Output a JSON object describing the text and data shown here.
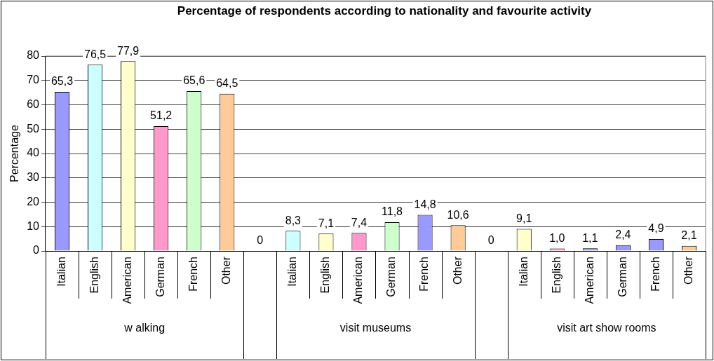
{
  "chart_data": {
    "type": "bar",
    "title": "Percentage of respondents according to nationality and favourite activity",
    "ylabel": "Percentage",
    "categories": [
      "Italian",
      "English",
      "American",
      "German",
      "French",
      "Other",
      null,
      "Italian",
      "English",
      "American",
      "German",
      "French",
      "Other",
      null,
      "Italian",
      "English",
      "American",
      "German",
      "French",
      "Other"
    ],
    "values": [
      65.3,
      76.5,
      77.9,
      51.2,
      65.6,
      64.5,
      0,
      8.3,
      7.1,
      7.4,
      11.8,
      14.8,
      10.6,
      0,
      9.1,
      1.0,
      1.1,
      2.4,
      4.9,
      2.1
    ],
    "value_labels": [
      "65,3",
      "76,5",
      "77,9",
      "51,2",
      "65,6",
      "64,5",
      "0",
      "8,3",
      "7,1",
      "7,4",
      "11,8",
      "14,8",
      "10,6",
      "0",
      "9,1",
      "1,0",
      "1,1",
      "2,4",
      "4,9",
      "2,1"
    ],
    "colors": [
      "#9999ff",
      "#ccffff",
      "#ffffcc",
      "#ff99cc",
      "#ccffcc",
      "#ffcc99",
      "#ffffff",
      "#ccffff",
      "#ffffcc",
      "#ff99cc",
      "#ccffcc",
      "#9999ff",
      "#ffcc99",
      "#ffffff",
      "#ffffcc",
      "#ff99cc",
      "#9999ff",
      "#9999ff",
      "#9999ff",
      "#ffcc99"
    ],
    "ylim": [
      0,
      80
    ],
    "yticks": [
      0,
      10,
      20,
      30,
      40,
      50,
      60,
      70,
      80
    ],
    "grid": "y",
    "legend": false,
    "annotations": [
      "w alking",
      "visit museums",
      "visit art show rooms"
    ]
  }
}
